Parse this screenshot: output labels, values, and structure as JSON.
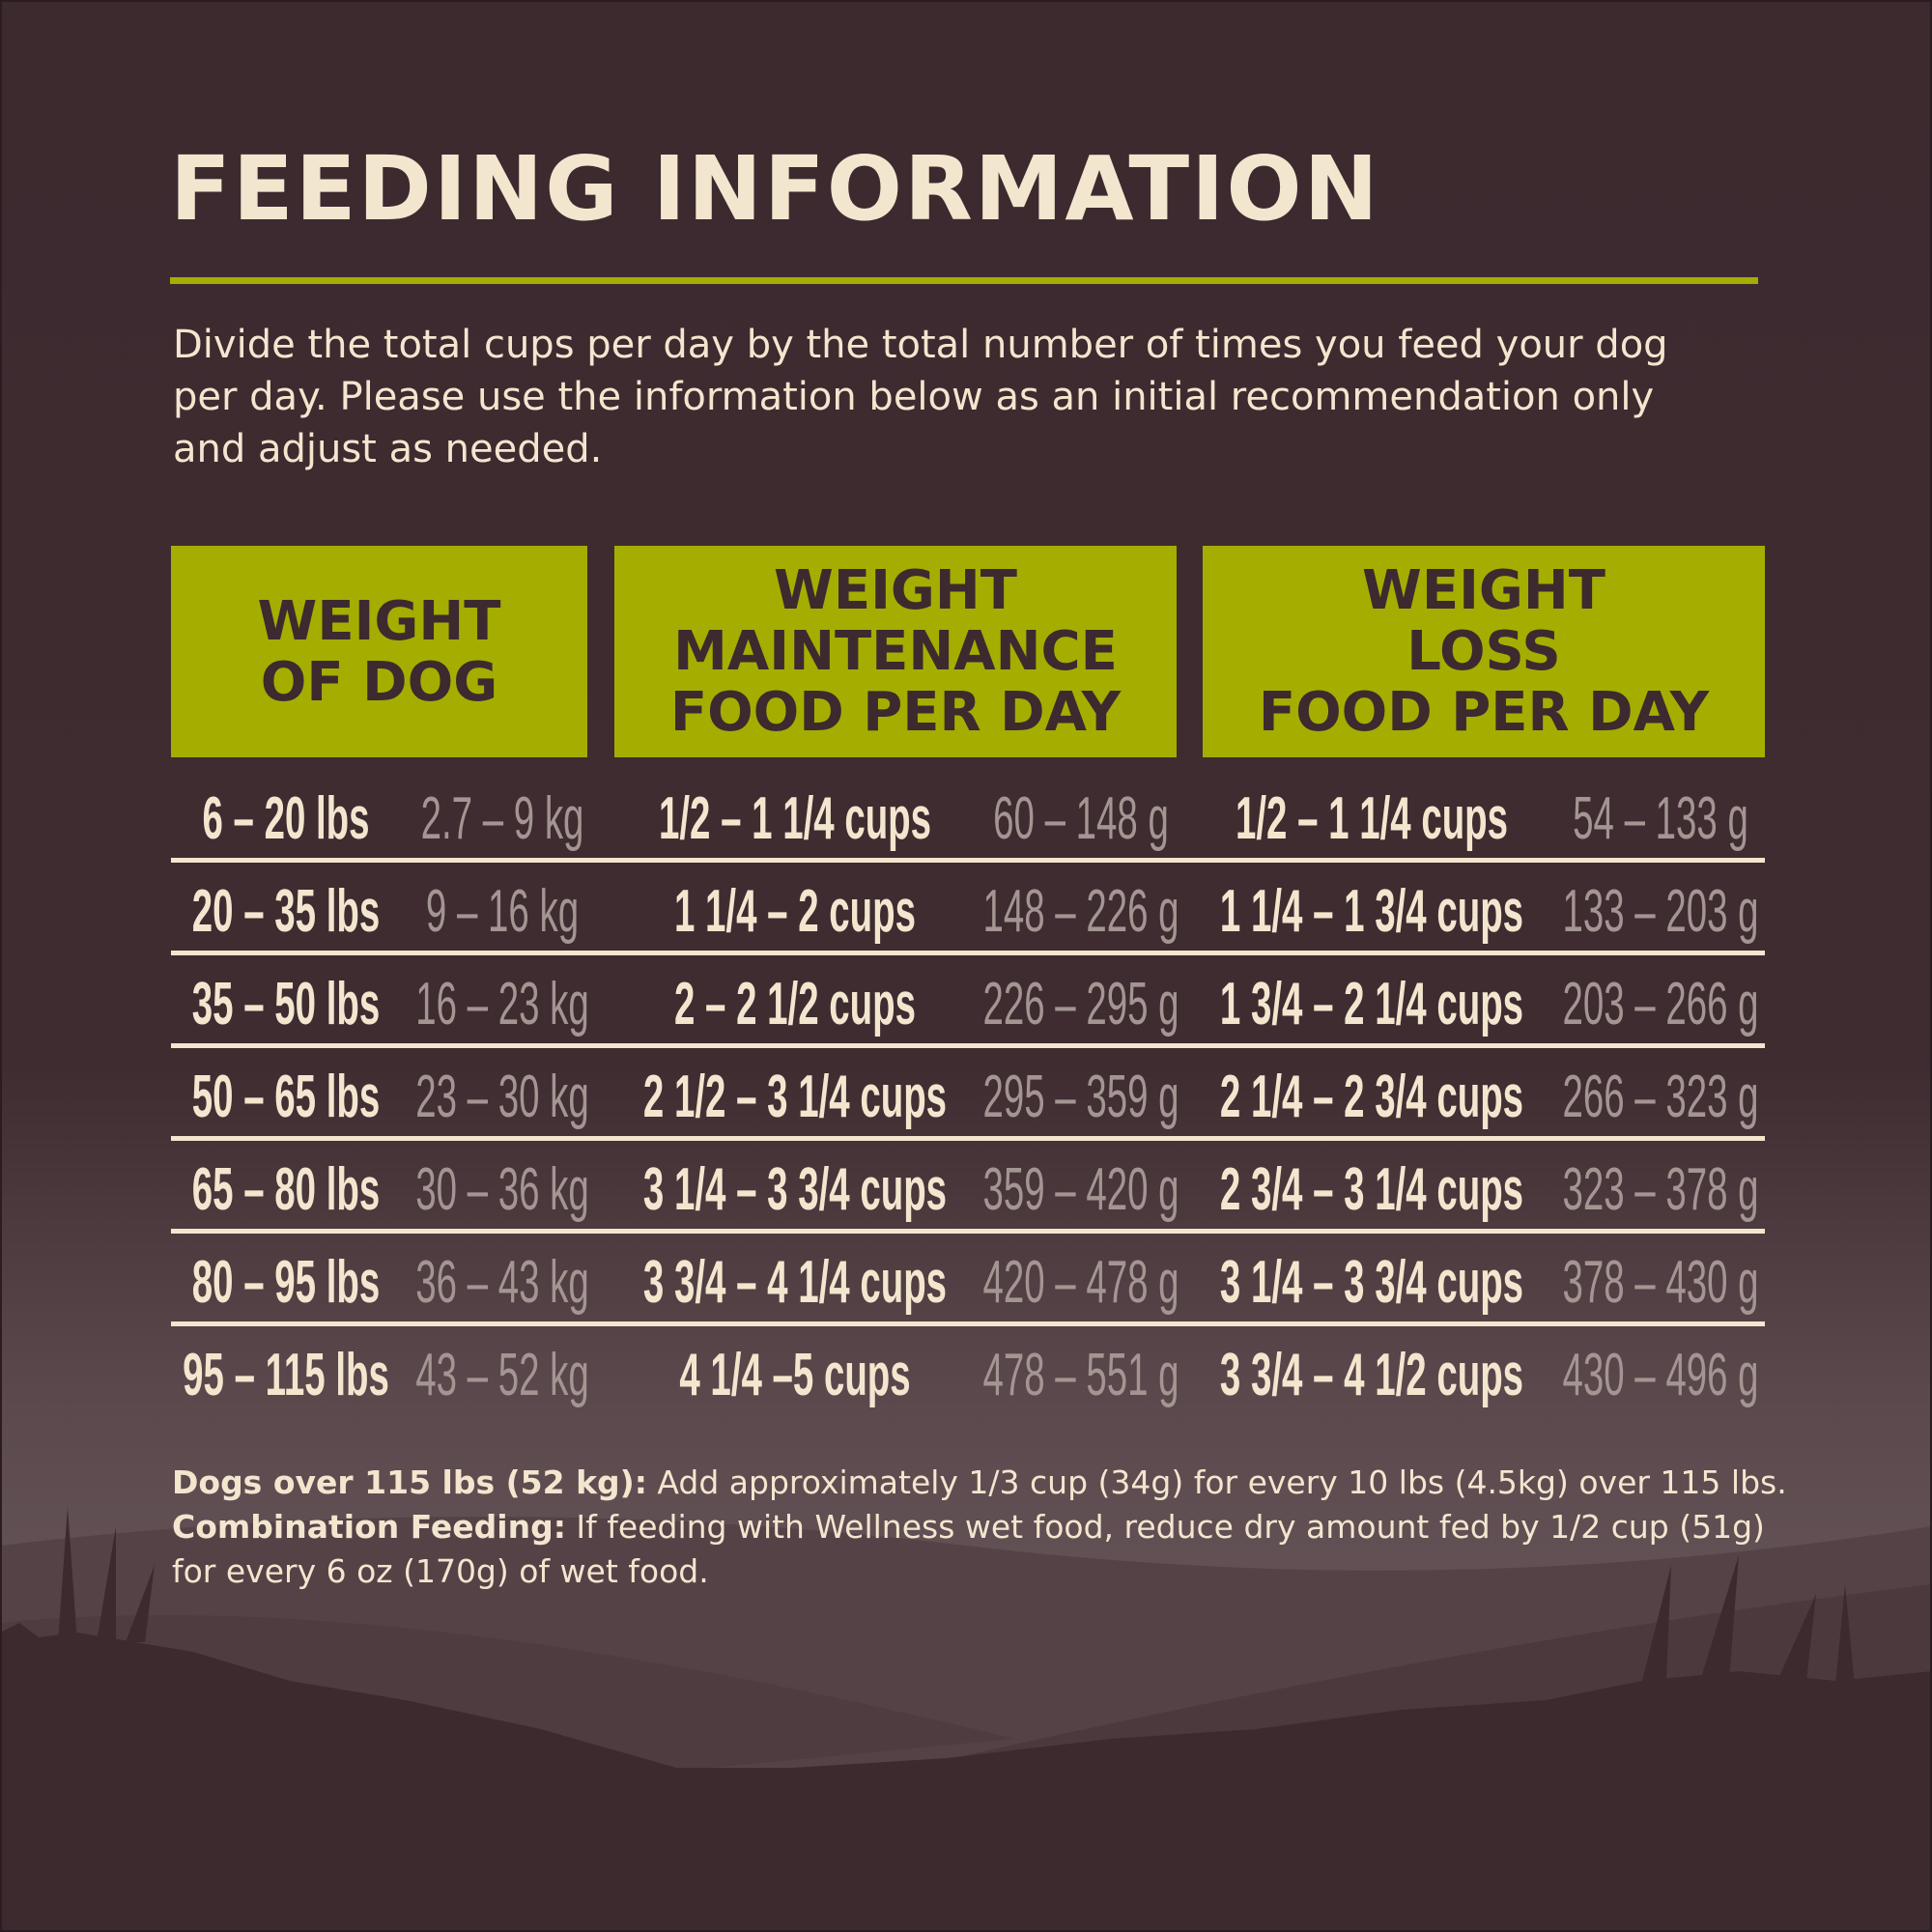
{
  "title": "FEEDING INFORMATION",
  "intro": "Divide the total cups per day by the total number of times you feed your dog per day. Please use the information below as an initial recommendation only and adjust as needed.",
  "colors": {
    "background": "#3c2a2f",
    "accent": "#a5ad00",
    "text": "#f3e6cf",
    "secondary_text": "#a39592"
  },
  "headers": [
    {
      "lines": [
        "WEIGHT",
        "OF DOG"
      ]
    },
    {
      "lines": [
        "WEIGHT",
        "MAINTENANCE",
        "FOOD PER DAY"
      ]
    },
    {
      "lines": [
        "WEIGHT",
        "LOSS",
        "FOOD PER DAY"
      ]
    }
  ],
  "rows": [
    {
      "lbs": "6 – 20 lbs",
      "kg": "2.7 – 9 kg",
      "maint_cups": "1/2 – 1 1/4 cups",
      "maint_g": "60 – 148 g",
      "loss_cups": "1/2 – 1 1/4 cups",
      "loss_g": "54 – 133 g"
    },
    {
      "lbs": "20 – 35 lbs",
      "kg": "9 – 16 kg",
      "maint_cups": "1 1/4 – 2 cups",
      "maint_g": "148 – 226 g",
      "loss_cups": "1 1/4 – 1 3/4 cups",
      "loss_g": "133 – 203 g"
    },
    {
      "lbs": "35 – 50 lbs",
      "kg": "16 – 23 kg",
      "maint_cups": "2 – 2 1/2 cups",
      "maint_g": "226 – 295 g",
      "loss_cups": "1 3/4 – 2 1/4 cups",
      "loss_g": "203 – 266 g"
    },
    {
      "lbs": "50 – 65 lbs",
      "kg": "23 – 30 kg",
      "maint_cups": "2 1/2 – 3 1/4 cups",
      "maint_g": "295 – 359 g",
      "loss_cups": "2 1/4 – 2 3/4 cups",
      "loss_g": "266 – 323 g"
    },
    {
      "lbs": "65 – 80 lbs",
      "kg": "30 – 36 kg",
      "maint_cups": "3 1/4 – 3 3/4 cups",
      "maint_g": "359 – 420 g",
      "loss_cups": "2 3/4 – 3 1/4 cups",
      "loss_g": "323 – 378 g"
    },
    {
      "lbs": "80 – 95 lbs",
      "kg": "36 – 43 kg",
      "maint_cups": "3 3/4 – 4 1/4 cups",
      "maint_g": "420 – 478 g",
      "loss_cups": "3 1/4 – 3 3/4 cups",
      "loss_g": "378 – 430 g"
    },
    {
      "lbs": "95 – 115 lbs",
      "kg": "43 – 52 kg",
      "maint_cups": "4 1/4 –5 cups",
      "maint_g": "478 – 551 g",
      "loss_cups": "3 3/4 – 4 1/2 cups",
      "loss_g": "430 – 496 g"
    }
  ],
  "footer": {
    "large_dogs_label": "Dogs over 115 lbs (52 kg):",
    "large_dogs_text": " Add approximately 1/3 cup (34g) for every 10 lbs (4.5kg) over 115 lbs. ",
    "combo_label": "Combination Feeding:",
    "combo_text": " If feeding with Wellness wet food, reduce dry amount fed by 1/2 cup (51g) for every 6 oz (170g) of wet food."
  }
}
